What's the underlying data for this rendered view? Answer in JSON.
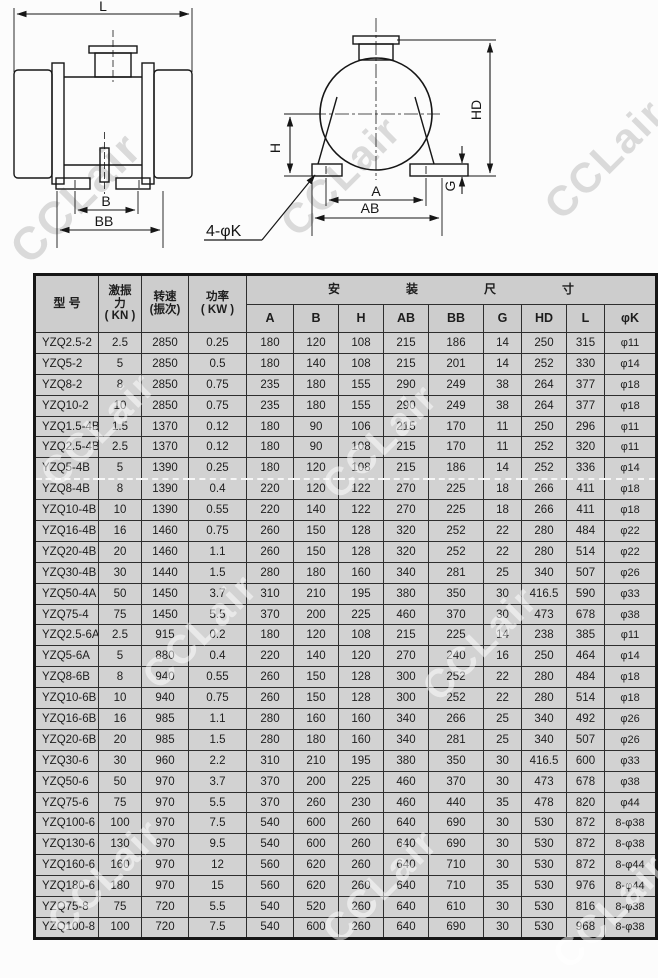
{
  "watermark": {
    "text": "CCLair"
  },
  "diagram": {
    "side_view": {
      "dim_length": "L",
      "dim_foot_inner": "B",
      "dim_foot_outer": "BB"
    },
    "front_view": {
      "dim_height": "H",
      "dim_total_height": "HD",
      "dim_width_inner": "A",
      "dim_width_outer": "AB",
      "dim_foot_thickness": "G"
    },
    "hole_callout": "4-φK"
  },
  "table": {
    "header": {
      "model": "型  号",
      "force_lines": [
        "激振",
        "力",
        "( KN )"
      ],
      "speed_lines": [
        "转速",
        "(振次)"
      ],
      "power_lines": [
        "功率",
        "( KW )"
      ],
      "mounting": [
        "安",
        "装",
        "尺",
        "寸"
      ],
      "dim_columns": [
        "A",
        "B",
        "H",
        "AB",
        "BB",
        "G",
        "HD",
        "L",
        "φK"
      ]
    },
    "rows": [
      [
        "YZQ2.5-2",
        "2.5",
        "2850",
        "0.25",
        "180",
        "120",
        "108",
        "215",
        "186",
        "14",
        "250",
        "315",
        "φ11"
      ],
      [
        "YZQ5-2",
        "5",
        "2850",
        "0.5",
        "180",
        "140",
        "108",
        "215",
        "201",
        "14",
        "252",
        "330",
        "φ14"
      ],
      [
        "YZQ8-2",
        "8",
        "2850",
        "0.75",
        "235",
        "180",
        "155",
        "290",
        "249",
        "38",
        "264",
        "377",
        "φ18"
      ],
      [
        "YZQ10-2",
        "10",
        "2850",
        "0.75",
        "235",
        "180",
        "155",
        "290",
        "249",
        "38",
        "264",
        "377",
        "φ18"
      ],
      [
        "YZQ1.5-4B",
        "1.5",
        "1370",
        "0.12",
        "180",
        "90",
        "106",
        "215",
        "170",
        "11",
        "250",
        "296",
        "φ11"
      ],
      [
        "YZQ2.5-4B",
        "2.5",
        "1370",
        "0.12",
        "180",
        "90",
        "108",
        "215",
        "170",
        "11",
        "252",
        "320",
        "φ11"
      ],
      [
        "YZQ5-4B",
        "5",
        "1390",
        "0.25",
        "180",
        "120",
        "108",
        "215",
        "186",
        "14",
        "252",
        "336",
        "φ14"
      ],
      [
        "YZQ8-4B",
        "8",
        "1390",
        "0.4",
        "220",
        "120",
        "122",
        "270",
        "225",
        "18",
        "266",
        "411",
        "φ18"
      ],
      [
        "YZQ10-4B",
        "10",
        "1390",
        "0.55",
        "220",
        "140",
        "122",
        "270",
        "225",
        "18",
        "266",
        "411",
        "φ18"
      ],
      [
        "YZQ16-4B",
        "16",
        "1460",
        "0.75",
        "260",
        "150",
        "128",
        "320",
        "252",
        "22",
        "280",
        "484",
        "φ22"
      ],
      [
        "YZQ20-4B",
        "20",
        "1460",
        "1.1",
        "260",
        "150",
        "128",
        "320",
        "252",
        "22",
        "280",
        "514",
        "φ22"
      ],
      [
        "YZQ30-4B",
        "30",
        "1440",
        "1.5",
        "280",
        "180",
        "160",
        "340",
        "281",
        "25",
        "340",
        "507",
        "φ26"
      ],
      [
        "YZQ50-4A",
        "50",
        "1450",
        "3.7",
        "310",
        "210",
        "195",
        "380",
        "350",
        "30",
        "416.5",
        "590",
        "φ33"
      ],
      [
        "YZQ75-4",
        "75",
        "1450",
        "5.5",
        "370",
        "200",
        "225",
        "460",
        "370",
        "30",
        "473",
        "678",
        "φ38"
      ],
      [
        "YZQ2.5-6A",
        "2.5",
        "915",
        "0.2",
        "180",
        "120",
        "108",
        "215",
        "225",
        "14",
        "238",
        "385",
        "φ11"
      ],
      [
        "YZQ5-6A",
        "5",
        "880",
        "0.4",
        "220",
        "140",
        "120",
        "270",
        "240",
        "16",
        "250",
        "464",
        "φ14"
      ],
      [
        "YZQ8-6B",
        "8",
        "940",
        "0.55",
        "260",
        "150",
        "128",
        "300",
        "252",
        "22",
        "280",
        "484",
        "φ18"
      ],
      [
        "YZQ10-6B",
        "10",
        "940",
        "0.75",
        "260",
        "150",
        "128",
        "300",
        "252",
        "22",
        "280",
        "514",
        "φ18"
      ],
      [
        "YZQ16-6B",
        "16",
        "985",
        "1.1",
        "280",
        "160",
        "160",
        "340",
        "266",
        "25",
        "340",
        "492",
        "φ26"
      ],
      [
        "YZQ20-6B",
        "20",
        "985",
        "1.5",
        "280",
        "180",
        "160",
        "340",
        "281",
        "25",
        "340",
        "507",
        "φ26"
      ],
      [
        "YZQ30-6",
        "30",
        "960",
        "2.2",
        "310",
        "210",
        "195",
        "380",
        "350",
        "30",
        "416.5",
        "600",
        "φ33"
      ],
      [
        "YZQ50-6",
        "50",
        "970",
        "3.7",
        "370",
        "200",
        "225",
        "460",
        "370",
        "30",
        "473",
        "678",
        "φ38"
      ],
      [
        "YZQ75-6",
        "75",
        "970",
        "5.5",
        "370",
        "260",
        "230",
        "460",
        "440",
        "35",
        "478",
        "820",
        "φ44"
      ],
      [
        "YZQ100-6",
        "100",
        "970",
        "7.5",
        "540",
        "600",
        "260",
        "640",
        "690",
        "30",
        "530",
        "872",
        "8-φ38"
      ],
      [
        "YZQ130-6",
        "130",
        "970",
        "9.5",
        "540",
        "600",
        "260",
        "640",
        "690",
        "30",
        "530",
        "872",
        "8-φ38"
      ],
      [
        "YZQ160-6",
        "160",
        "970",
        "12",
        "560",
        "620",
        "260",
        "640",
        "710",
        "30",
        "530",
        "872",
        "8-φ44"
      ],
      [
        "YZQ180-6",
        "180",
        "970",
        "15",
        "560",
        "620",
        "260",
        "640",
        "710",
        "35",
        "530",
        "976",
        "8-φ44"
      ],
      [
        "YZQ75-8",
        "75",
        "720",
        "5.5",
        "540",
        "520",
        "260",
        "640",
        "610",
        "30",
        "530",
        "816",
        "8-φ38"
      ],
      [
        "YZQ100-8",
        "100",
        "720",
        "7.5",
        "540",
        "600",
        "260",
        "640",
        "690",
        "30",
        "530",
        "968",
        "8-φ38"
      ]
    ]
  },
  "colors": {
    "page_bg": "#fcfcfc",
    "cell_bg": "#d2d2d2",
    "header_bg": "#cdcdcd",
    "border": "#2e2e2e",
    "ink": "#1d1d1d",
    "watermark_gray": "#dadada"
  }
}
